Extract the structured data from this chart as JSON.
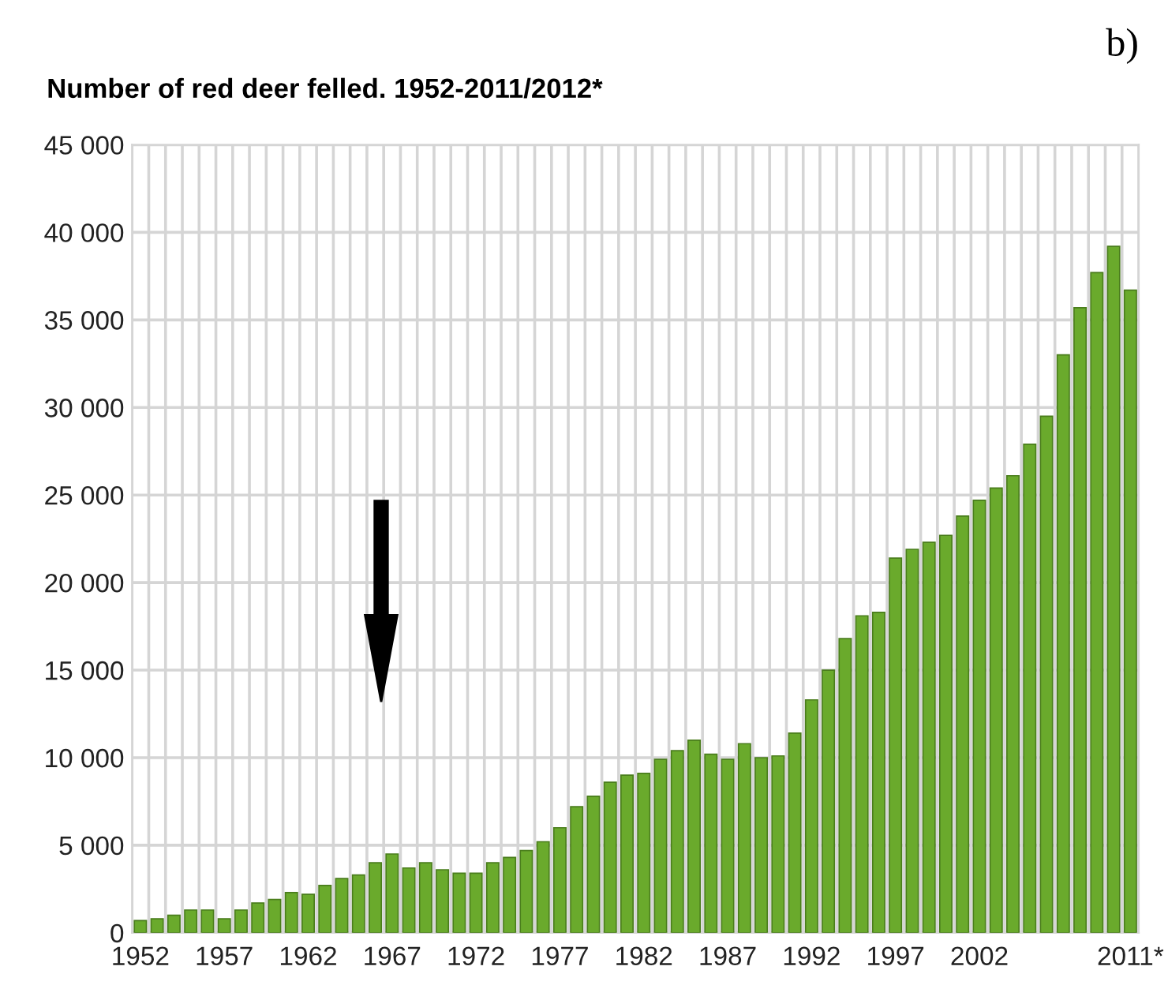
{
  "chart_data": {
    "type": "bar",
    "title": "Number of red deer felled. 1952-2011/2012*",
    "categories": [
      "1952",
      null,
      null,
      null,
      null,
      "1957",
      null,
      null,
      null,
      null,
      "1962",
      null,
      null,
      null,
      null,
      "1967",
      null,
      null,
      null,
      null,
      "1972",
      null,
      null,
      null,
      null,
      "1977",
      null,
      null,
      null,
      null,
      "1982",
      null,
      null,
      null,
      null,
      "1987",
      null,
      null,
      null,
      null,
      "1992",
      null,
      null,
      null,
      null,
      "1997",
      null,
      null,
      null,
      null,
      "2002",
      null,
      null,
      null,
      null,
      null,
      null,
      null,
      null,
      "2011*"
    ],
    "values": [
      700,
      800,
      1000,
      1300,
      1300,
      800,
      1300,
      1700,
      1900,
      2300,
      2200,
      2700,
      3100,
      3300,
      4000,
      4500,
      3700,
      4000,
      3600,
      3400,
      3400,
      4000,
      4300,
      4700,
      5200,
      6000,
      7200,
      7800,
      8600,
      9000,
      9100,
      9900,
      10400,
      11000,
      10200,
      9900,
      10800,
      10000,
      10100,
      11400,
      13300,
      15000,
      16800,
      18100,
      18300,
      21400,
      21900,
      22300,
      22700,
      23800,
      24700,
      25400,
      26100,
      27900,
      29500,
      33000,
      35700,
      37700,
      39200,
      36700
    ],
    "color": "#6aaa2c",
    "ylim": [
      0,
      45000
    ],
    "yticks": [
      0,
      {
        "value": 5000,
        "label": "5 000"
      },
      {
        "value": 10000,
        "label": "10 000"
      },
      {
        "value": 15000,
        "label": "15 000"
      },
      {
        "value": 20000,
        "label": "20 000"
      },
      {
        "value": 25000,
        "label": "25 000"
      },
      {
        "value": 30000,
        "label": "30 000"
      },
      {
        "value": 35000,
        "label": "35 000"
      },
      {
        "value": 40000,
        "label": "40 000"
      },
      {
        "value": 45000,
        "label": "45 000"
      }
    ],
    "grid": true,
    "annotations": [
      "b)"
    ]
  }
}
